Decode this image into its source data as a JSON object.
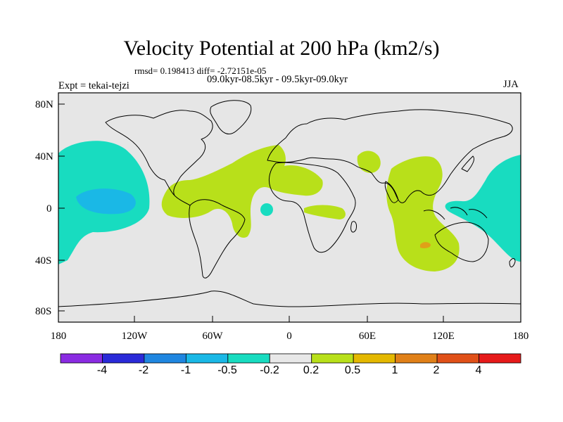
{
  "title": "Velocity Potential at 200 hPa (km2/s)",
  "stats_line": "rmsd= 0.198413 diff= -2.72151e-05",
  "subtitle": "09.0kyr-08.5kyr - 09.5kyr-09.0kyr",
  "left_label": "Expt = tekai-tejzi",
  "right_label": "JJA",
  "lat_ticks": [
    "80N",
    "40N",
    "0",
    "40S",
    "80S"
  ],
  "lon_ticks": [
    "180",
    "120W",
    "60W",
    "0",
    "60E",
    "120E",
    "180"
  ],
  "colorbar": {
    "labels": [
      "-4",
      "-2",
      "-1",
      "-0.5",
      "-0.2",
      "0.2",
      "0.5",
      "1",
      "2",
      "4"
    ],
    "colors": [
      "#8a2be2",
      "#2a2ad8",
      "#1f86e0",
      "#1ab8e6",
      "#18dcc0",
      "#e8e8e8",
      "#b8e01a",
      "#e4b800",
      "#e08018",
      "#e05018",
      "#e61a1a"
    ]
  },
  "colors": {
    "ocean": "#e6e6e6",
    "positive_anomaly": "#b8e01a",
    "negative_anomaly": "#18dcc0",
    "strong_negative": "#1ab8e6",
    "strong_positive": "#e0a018"
  }
}
